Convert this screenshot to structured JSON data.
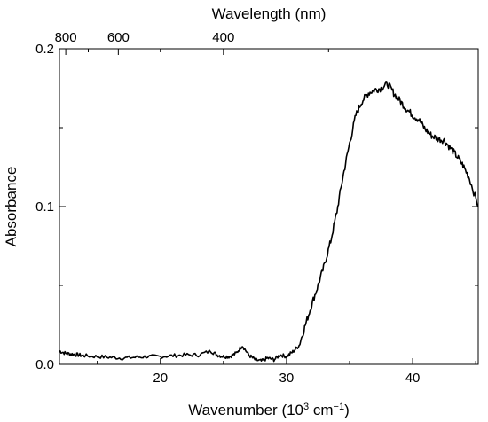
{
  "chart_data": {
    "type": "line",
    "xlabel": "Wavenumber (10",
    "xlabel_sup": "3",
    "xlabel_unit": " cm",
    "xlabel_unit_sup": "−1",
    "xlabel_close": ")",
    "ylabel": "Absorbance",
    "top_axis_label": "Wavelength (nm)",
    "xlim": [
      12,
      45.2
    ],
    "ylim": [
      0,
      0.2
    ],
    "x_ticks": [
      20,
      30,
      40
    ],
    "x_tick_labels": [
      "20",
      "30",
      "40"
    ],
    "y_ticks": [
      0.0,
      0.1,
      0.2
    ],
    "y_tick_labels": [
      "0.0",
      "0.1",
      "0.2"
    ],
    "top_ticks_nm": [
      800,
      600,
      400
    ],
    "top_tick_labels": [
      "800",
      "600",
      "400"
    ],
    "grid": false,
    "line_color": "#000000",
    "series": [
      {
        "x": [
          12.0,
          12.5,
          13.0,
          13.5,
          14.0,
          15.0,
          16.0,
          17.0,
          18.0,
          19.0,
          20.0,
          21.0,
          22.0,
          23.0,
          24.0,
          24.5,
          25.0,
          25.5,
          26.0,
          26.5,
          27.0,
          27.5,
          28.0,
          28.5,
          29.0,
          29.5,
          30.0,
          30.5,
          31.0,
          31.5,
          32.0,
          32.5,
          33.0,
          33.5,
          34.0,
          34.5,
          35.0,
          35.5,
          36.0,
          36.5,
          37.0,
          37.5,
          38.0,
          38.5,
          39.0,
          39.5,
          40.0,
          40.5,
          41.0,
          41.5,
          42.0,
          42.5,
          43.0,
          43.5,
          44.0,
          44.5,
          45.2
        ],
        "y": [
          0.0085,
          0.007,
          0.0065,
          0.006,
          0.0055,
          0.005,
          0.0045,
          0.004,
          0.0045,
          0.005,
          0.005,
          0.0055,
          0.006,
          0.006,
          0.0085,
          0.006,
          0.005,
          0.005,
          0.007,
          0.012,
          0.006,
          0.003,
          0.002,
          0.004,
          0.003,
          0.006,
          0.005,
          0.008,
          0.012,
          0.025,
          0.038,
          0.05,
          0.063,
          0.078,
          0.097,
          0.12,
          0.14,
          0.158,
          0.167,
          0.172,
          0.174,
          0.175,
          0.178,
          0.172,
          0.167,
          0.162,
          0.158,
          0.155,
          0.149,
          0.145,
          0.143,
          0.142,
          0.137,
          0.132,
          0.126,
          0.118,
          0.1
        ]
      }
    ]
  }
}
